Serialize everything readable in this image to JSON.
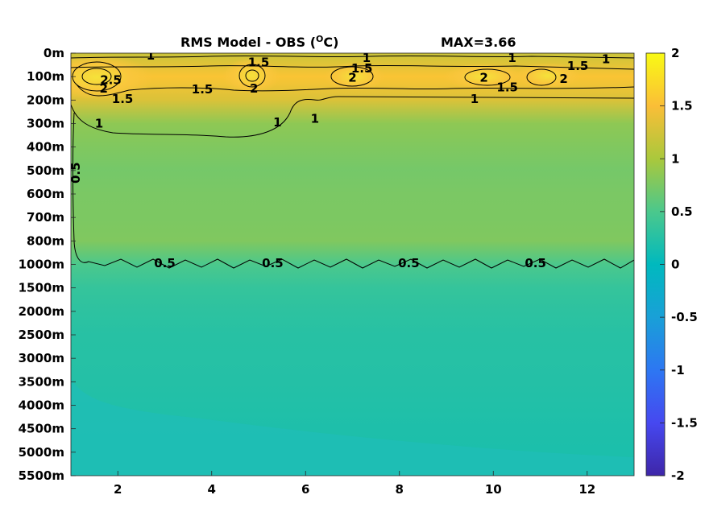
{
  "chart_data": {
    "type": "heatmap",
    "title": "RMS Model - OBS (",
    "title_sup": "O",
    "title_unit": "C)",
    "annotation": "MAX=3.66",
    "xlim": [
      1,
      13
    ],
    "x_ticks": [
      2,
      4,
      6,
      8,
      10,
      12
    ],
    "x_tick_labels": [
      "2",
      "4",
      "6",
      "8",
      "10",
      "12"
    ],
    "y_tick_labels": [
      "0m",
      "100m",
      "200m",
      "300m",
      "400m",
      "500m",
      "600m",
      "700m",
      "800m",
      "1000m",
      "1500m",
      "2000m",
      "2500m",
      "3000m",
      "3500m",
      "4000m",
      "4500m",
      "5000m",
      "5500m"
    ],
    "colorbar": {
      "range": [
        -2,
        2
      ],
      "ticks": [
        2,
        1.5,
        1,
        0.5,
        0,
        -0.5,
        -1,
        -1.5,
        -2
      ],
      "tick_labels": [
        "2",
        "1.5",
        "1",
        "0.5",
        "0",
        "-0.5",
        "-1",
        "-1.5",
        "-2"
      ],
      "colormap": "parula"
    },
    "rows": [
      {
        "depth": "0m",
        "value": 1.2
      },
      {
        "depth": "100m",
        "value": 1.55
      },
      {
        "depth": "200m",
        "value": 1.3
      },
      {
        "depth": "300m",
        "value": 0.85
      },
      {
        "depth": "400m",
        "value": 0.78
      },
      {
        "depth": "500m",
        "value": 0.72
      },
      {
        "depth": "600m",
        "value": 0.75
      },
      {
        "depth": "700m",
        "value": 0.76
      },
      {
        "depth": "800m",
        "value": 0.78
      },
      {
        "depth": "1000m",
        "value": 0.5
      },
      {
        "depth": "1500m",
        "value": 0.35
      },
      {
        "depth": "2000m",
        "value": 0.3
      },
      {
        "depth": "2500m",
        "value": 0.26
      },
      {
        "depth": "3000m",
        "value": 0.25
      },
      {
        "depth": "3500m",
        "value": 0.24
      },
      {
        "depth": "4000m",
        "value": 0.22
      },
      {
        "depth": "4500m",
        "value": 0.2
      },
      {
        "depth": "5000m",
        "value": 0.19
      },
      {
        "depth": "5500m",
        "value": 0.19
      }
    ],
    "contour_labels": [
      {
        "text": "1",
        "x": 2.7,
        "depth_index": 0.1
      },
      {
        "text": "1.5",
        "x": 5.0,
        "depth_index": 0.4
      },
      {
        "text": "1",
        "x": 7.3,
        "depth_index": 0.2
      },
      {
        "text": "1",
        "x": 10.4,
        "depth_index": 0.2
      },
      {
        "text": "1",
        "x": 12.4,
        "depth_index": 0.25
      },
      {
        "text": "1.5",
        "x": 7.2,
        "depth_index": 0.65
      },
      {
        "text": "1.5",
        "x": 11.8,
        "depth_index": 0.55
      },
      {
        "text": "2.5",
        "x": 1.85,
        "depth_index": 1.15
      },
      {
        "text": "2",
        "x": 1.7,
        "depth_index": 1.5
      },
      {
        "text": "1.5",
        "x": 2.1,
        "depth_index": 1.95
      },
      {
        "text": "1.5",
        "x": 3.8,
        "depth_index": 1.55
      },
      {
        "text": "2",
        "x": 4.9,
        "depth_index": 1.5
      },
      {
        "text": "2",
        "x": 7.0,
        "depth_index": 1.05
      },
      {
        "text": "2",
        "x": 9.8,
        "depth_index": 1.05
      },
      {
        "text": "1.5",
        "x": 10.3,
        "depth_index": 1.45
      },
      {
        "text": "2",
        "x": 11.5,
        "depth_index": 1.1
      },
      {
        "text": "1",
        "x": 9.6,
        "depth_index": 1.95
      },
      {
        "text": "1",
        "x": 1.6,
        "depth_index": 3.0
      },
      {
        "text": "1",
        "x": 5.4,
        "depth_index": 2.95
      },
      {
        "text": "1",
        "x": 6.2,
        "depth_index": 2.8
      },
      {
        "text": "0.5",
        "x": 1.1,
        "depth_index": 5.1
      },
      {
        "text": "0.5",
        "x": 3.0,
        "depth_index": 8.95
      },
      {
        "text": "0.5",
        "x": 5.3,
        "depth_index": 8.95
      },
      {
        "text": "0.5",
        "x": 8.2,
        "depth_index": 8.95
      },
      {
        "text": "0.5",
        "x": 10.9,
        "depth_index": 8.95
      }
    ]
  }
}
